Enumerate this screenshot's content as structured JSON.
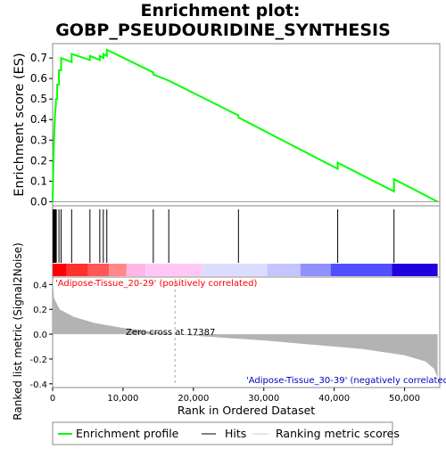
{
  "chart_data": {
    "type": "line",
    "title": "Enrichment plot: GOBP_PSEUDOURIDINE_SYNTHESIS",
    "title_line1": "Enrichment plot:",
    "title_line2": "GOBP_PSEUDOURIDINE_SYNTHESIS",
    "xlabel": "Rank in Ordered Dataset",
    "es_panel": {
      "ylabel": "Enrichment score (ES)",
      "ylim": [
        -0.02,
        0.77
      ],
      "yticks": [
        0.0,
        0.1,
        0.2,
        0.3,
        0.4,
        0.5,
        0.6,
        0.7
      ],
      "ytick_labels": [
        "0.0",
        "0.1",
        "0.2",
        "0.3",
        "0.4",
        "0.5",
        "0.6",
        "0.7"
      ],
      "color": "#00ff00",
      "zero_line": true,
      "profile_points": [
        [
          0,
          0.0
        ],
        [
          80,
          0.12
        ],
        [
          80,
          0.13
        ],
        [
          160,
          0.27
        ],
        [
          160,
          0.28
        ],
        [
          240,
          0.34
        ],
        [
          240,
          0.35
        ],
        [
          330,
          0.41
        ],
        [
          330,
          0.42
        ],
        [
          450,
          0.47
        ],
        [
          450,
          0.5
        ],
        [
          650,
          0.5
        ],
        [
          650,
          0.57
        ],
        [
          900,
          0.57
        ],
        [
          900,
          0.64
        ],
        [
          1200,
          0.64
        ],
        [
          1200,
          0.7
        ],
        [
          2700,
          0.68
        ],
        [
          2700,
          0.72
        ],
        [
          5300,
          0.69
        ],
        [
          5300,
          0.71
        ],
        [
          6700,
          0.69
        ],
        [
          6700,
          0.71
        ],
        [
          7200,
          0.7
        ],
        [
          7200,
          0.72
        ],
        [
          7700,
          0.71
        ],
        [
          7700,
          0.74
        ],
        [
          14300,
          0.63
        ],
        [
          14300,
          0.62
        ],
        [
          16500,
          0.59
        ],
        [
          16500,
          0.59
        ],
        [
          26400,
          0.42
        ],
        [
          26400,
          0.41
        ],
        [
          40500,
          0.16
        ],
        [
          40500,
          0.19
        ],
        [
          48500,
          0.05
        ],
        [
          48500,
          0.11
        ],
        [
          54700,
          0.0
        ]
      ]
    },
    "hits_panel": {
      "label": "Hits",
      "hit_ranks": [
        60,
        140,
        220,
        300,
        380,
        460,
        520,
        900,
        1200,
        2700,
        5300,
        6700,
        7200,
        7700,
        14300,
        16500,
        26400,
        40500,
        48500
      ],
      "color_bar": [
        "#ff0000",
        "#ff3030",
        "#ff5656",
        "#ff8888",
        "#ffb6e4",
        "#ffc8f4",
        "#dcdcff",
        "#c4c4ff",
        "#9090ff",
        "#5050ff",
        "#2000dd"
      ],
      "color_bar_breaks": [
        0,
        2000,
        5000,
        8000,
        10500,
        13200,
        21200,
        30500,
        35200,
        39500,
        48200,
        54700
      ],
      "positive_label": "'Adipose-Tissue_20-29' (positively correlated)",
      "negative_label": "'Adipose-Tissue_30-39' (negatively correlated)"
    },
    "metric_panel": {
      "ylabel": "Ranked list metric (Signal2Noise)",
      "ylim": [
        -0.43,
        0.46
      ],
      "yticks": [
        -0.4,
        -0.2,
        0.0,
        0.2,
        0.4
      ],
      "ytick_labels": [
        "-0.4",
        "-0.2",
        "0.0",
        "0.2",
        "0.4"
      ],
      "zero_cross_label": "Zero cross at 17387",
      "zero_cross": 17387,
      "metric_points": [
        [
          0,
          0.45
        ],
        [
          200,
          0.29
        ],
        [
          1000,
          0.2
        ],
        [
          3000,
          0.14
        ],
        [
          6000,
          0.09
        ],
        [
          10000,
          0.05
        ],
        [
          14000,
          0.02
        ],
        [
          17387,
          0.0
        ],
        [
          22000,
          -0.02
        ],
        [
          30000,
          -0.05
        ],
        [
          38000,
          -0.09
        ],
        [
          44000,
          -0.12
        ],
        [
          50000,
          -0.17
        ],
        [
          53000,
          -0.22
        ],
        [
          54200,
          -0.28
        ],
        [
          54700,
          -0.35
        ]
      ],
      "fill_color": "#b3b3b3"
    },
    "xlim": [
      0,
      55000
    ],
    "xticks": [
      0,
      10000,
      20000,
      30000,
      40000,
      50000
    ],
    "xtick_labels": [
      "0",
      "10,000",
      "20,000",
      "30,000",
      "40,000",
      "50,000"
    ],
    "legend": {
      "placement": "bottom",
      "items": [
        {
          "label": "Enrichment profile",
          "color": "#00ff00",
          "kind": "thick-line"
        },
        {
          "label": "Hits",
          "color": "#000000",
          "kind": "thin-line"
        },
        {
          "label": "Ranking metric scores",
          "color": "#cccccc",
          "kind": "thin-line"
        }
      ]
    }
  }
}
